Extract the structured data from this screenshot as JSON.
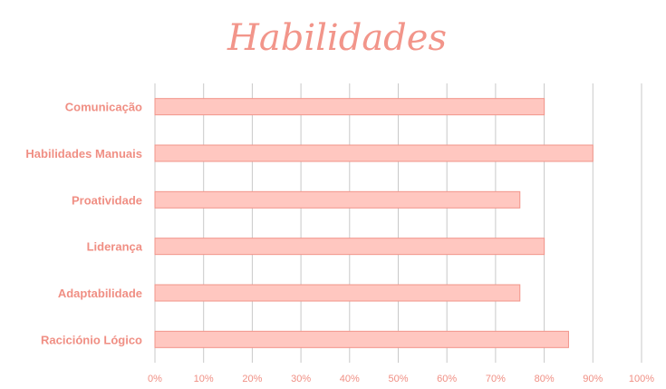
{
  "chart_data": {
    "type": "bar",
    "orientation": "horizontal",
    "title": "Habilidades",
    "categories": [
      "Comunicação",
      "Habilidades Manuais",
      "Proatividade",
      "Liderança",
      "Adaptabilidade",
      "Raciciónio Lógico"
    ],
    "values": [
      0.8,
      0.9,
      0.75,
      0.8,
      0.75,
      0.85
    ],
    "xlim": [
      0,
      1
    ],
    "xticks": [
      "0%",
      "10%",
      "20%",
      "30%",
      "40%",
      "50%",
      "60%",
      "70%",
      "80%",
      "90%",
      "100%"
    ],
    "grid": true,
    "legend": "none",
    "colors": {
      "bar_fill": "#ffc7c0",
      "bar_stroke": "#f2958a",
      "text": "#f08f84",
      "title": "#f2958a",
      "grid": "#c9c9c9"
    }
  }
}
